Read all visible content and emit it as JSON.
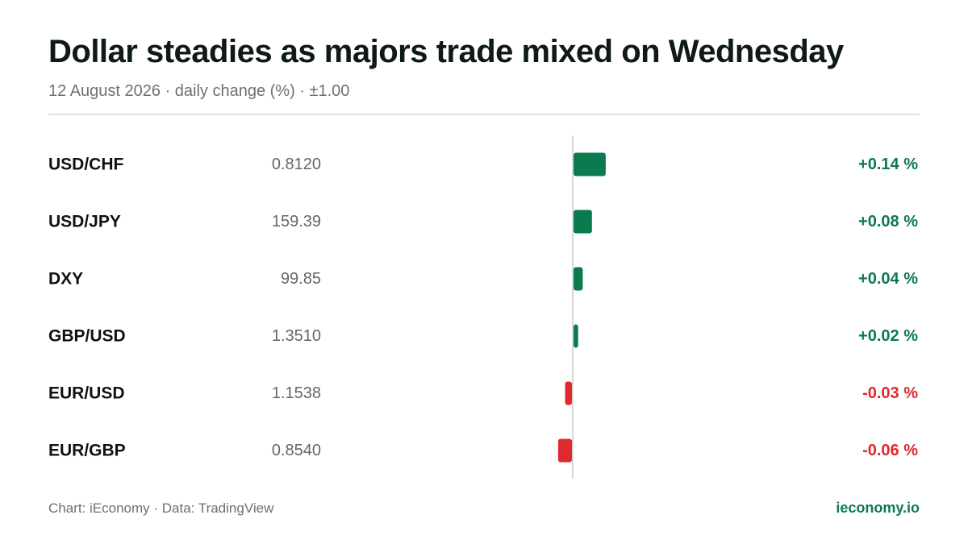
{
  "header": {
    "title": "Dollar steadies as majors trade mixed on Wednesday",
    "subtitle": "12 August 2026 · daily change (%) · ±1.00"
  },
  "footer": {
    "source": "Chart: iEconomy · Data: TradingView",
    "brand": "ieconomy.io"
  },
  "colors": {
    "positive": "#0b7a4e",
    "negative": "#e0282e",
    "brand": "#0b7a4e",
    "axis": "#d6d6d6"
  },
  "chart_data": {
    "type": "bar",
    "orientation": "horizontal",
    "categories": [
      "USD/CHF",
      "USD/JPY",
      "DXY",
      "GBP/USD",
      "EUR/USD",
      "EUR/GBP"
    ],
    "prices": [
      "0.8120",
      "159.39",
      "99.85",
      "1.3510",
      "1.1538",
      "0.8540"
    ],
    "values": [
      0.14,
      0.08,
      0.04,
      0.02,
      -0.03,
      -0.06
    ],
    "value_labels": [
      "+0.14 %",
      "+0.08 %",
      "+0.04 %",
      "+0.02 %",
      "-0.03 %",
      "-0.06 %"
    ],
    "xlim": [
      -1.0,
      1.0
    ],
    "grid": false
  }
}
